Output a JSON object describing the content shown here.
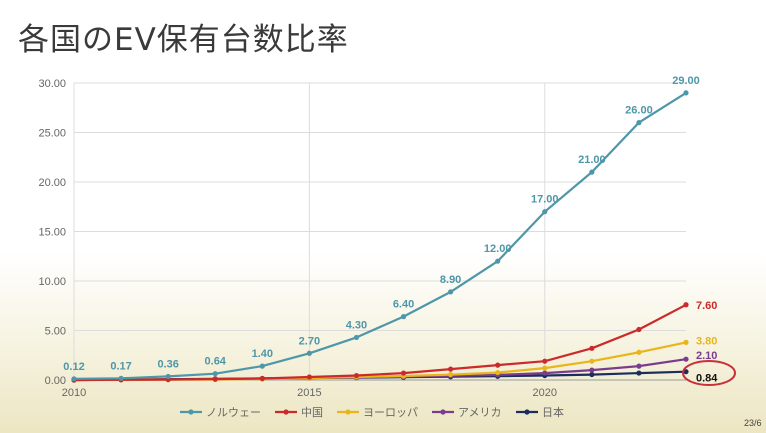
{
  "title": "各国のEV保有台数比率",
  "page_number": "23/6",
  "chart_data": {
    "type": "line",
    "x": [
      2010,
      2011,
      2012,
      2013,
      2014,
      2015,
      2016,
      2017,
      2018,
      2019,
      2020,
      2021,
      2022,
      2023
    ],
    "xticks": [
      2010,
      2015,
      2020
    ],
    "ylim": [
      0,
      30
    ],
    "yticks": [
      "0.00",
      "5.00",
      "10.00",
      "15.00",
      "20.00",
      "25.00",
      "30.00"
    ],
    "grid": true,
    "legend_position": "bottom",
    "series": [
      {
        "name": "ノルウェー",
        "color": "#4e97a8",
        "values": [
          0.12,
          0.17,
          0.36,
          0.64,
          1.4,
          2.7,
          4.3,
          6.4,
          8.9,
          12.0,
          17.0,
          21.0,
          26.0,
          29.0
        ],
        "labels": [
          "0.12",
          "0.17",
          "0.36",
          "0.64",
          "1.40",
          "2.70",
          "4.30",
          "6.40",
          "8.90",
          "12.00",
          "17.00",
          "21.00",
          "26.00",
          "29.00"
        ]
      },
      {
        "name": "中国",
        "color": "#cc2a2a",
        "values": [
          0.0,
          0.02,
          0.05,
          0.08,
          0.15,
          0.3,
          0.45,
          0.7,
          1.1,
          1.5,
          1.9,
          3.2,
          5.1,
          7.6
        ],
        "labels": [
          "",
          "",
          "",
          "",
          "",
          "",
          "",
          "",
          "",
          "",
          "",
          "",
          "",
          "7.60"
        ]
      },
      {
        "name": "ヨーロッパ",
        "color": "#e8b51a",
        "values": [
          0.0,
          0.01,
          0.03,
          0.05,
          0.1,
          0.2,
          0.3,
          0.4,
          0.55,
          0.75,
          1.2,
          1.9,
          2.8,
          3.8
        ],
        "labels": [
          "",
          "",
          "",
          "",
          "",
          "",
          "",
          "",
          "",
          "",
          "",
          "",
          "",
          "3.80"
        ]
      },
      {
        "name": "アメリカ",
        "color": "#7a3c8c",
        "values": [
          0.0,
          0.02,
          0.05,
          0.09,
          0.14,
          0.2,
          0.26,
          0.33,
          0.42,
          0.52,
          0.7,
          1.0,
          1.4,
          2.1
        ],
        "labels": [
          "",
          "",
          "",
          "",
          "",
          "",
          "",
          "",
          "",
          "",
          "",
          "",
          "",
          "2.10"
        ]
      },
      {
        "name": "日本",
        "color": "#1a2d5c",
        "values": [
          0.0,
          0.03,
          0.08,
          0.12,
          0.16,
          0.2,
          0.24,
          0.28,
          0.33,
          0.38,
          0.45,
          0.55,
          0.7,
          0.84
        ],
        "labels": [
          "",
          "",
          "",
          "",
          "",
          "",
          "",
          "",
          "",
          "",
          "",
          "",
          "",
          "0.84"
        ]
      }
    ],
    "highlight": {
      "series": "日本",
      "label": "0.84",
      "ring_color": "#c8303a"
    }
  }
}
